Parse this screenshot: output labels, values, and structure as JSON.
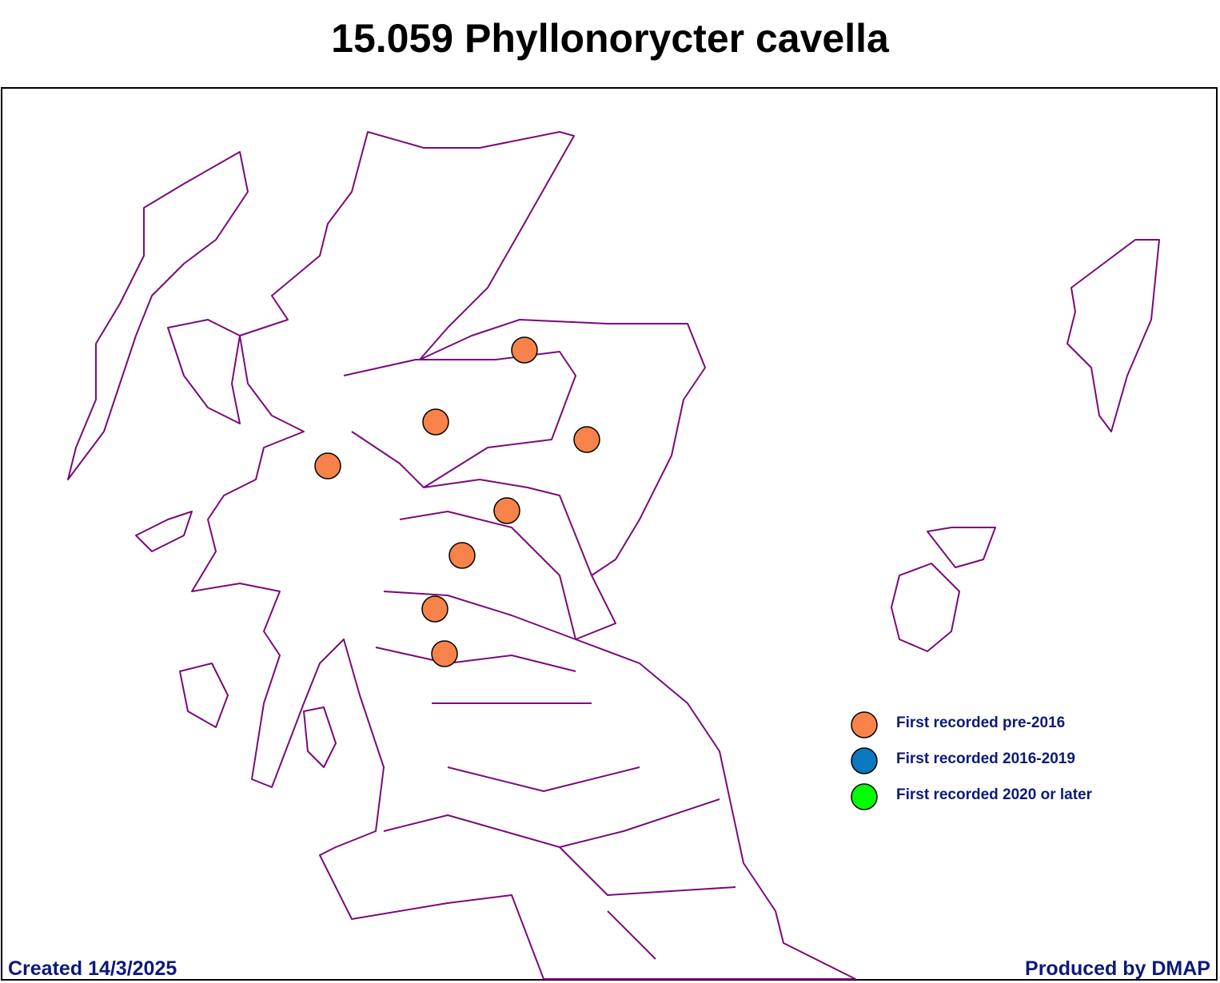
{
  "title": "15.059 Phyllonorycter cavella",
  "legend": [
    {
      "label": "First recorded pre-2016",
      "color": "#f7834a"
    },
    {
      "label": "First recorded 2016-2019",
      "color": "#0a78bf"
    },
    {
      "label": "First recorded 2020 or later",
      "color": "#00ff00"
    }
  ],
  "footer": {
    "left": "Created 14/3/2025",
    "right": "Produced by DMAP"
  }
}
